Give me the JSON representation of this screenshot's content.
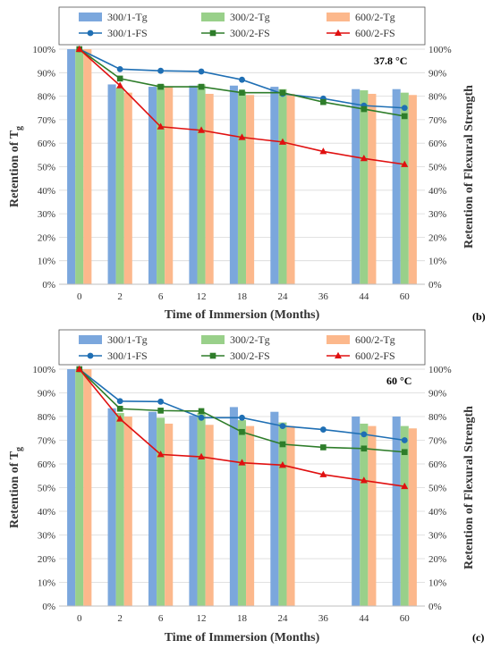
{
  "chart_data": [
    {
      "type": "bar",
      "panel_label": "(b)",
      "temperature_label": "37.8 °C",
      "categories": [
        "0",
        "2",
        "6",
        "12",
        "18",
        "24",
        "36",
        "44",
        "60"
      ],
      "xlabel": "Time of Immersion (Months)",
      "ylabel_left": "Retention of T",
      "ylabel_left_sub": "g",
      "ylabel_right": "Retention of Flexural Strength",
      "ylim": [
        0,
        100
      ],
      "yticks": [
        "0%",
        "10%",
        "20%",
        "30%",
        "40%",
        "50%",
        "60%",
        "70%",
        "80%",
        "90%",
        "100%"
      ],
      "bar_series": [
        {
          "name": "300/1-Tg",
          "color": "#7ba7dd",
          "values": [
            100,
            85,
            84,
            84.5,
            84.5,
            84,
            null,
            83,
            83
          ]
        },
        {
          "name": "300/2-Tg",
          "color": "#99d08a",
          "values": [
            100,
            83.5,
            85,
            85,
            82,
            83,
            null,
            82.5,
            81.5
          ]
        },
        {
          "name": "600/2-Tg",
          "color": "#fcb88c",
          "values": [
            100,
            81.5,
            84,
            81,
            80.5,
            81,
            null,
            81,
            80.5
          ]
        }
      ],
      "line_series": [
        {
          "name": "300/1-FS",
          "color": "#1f6fb4",
          "marker": "circle",
          "values": [
            100,
            91.5,
            90.8,
            90.5,
            87,
            81,
            79,
            76,
            75
          ]
        },
        {
          "name": "300/2-FS",
          "color": "#2e7d2a",
          "marker": "square",
          "values": [
            100,
            87.5,
            84,
            84,
            81.5,
            81.5,
            77.5,
            74.5,
            71.5
          ]
        },
        {
          "name": "600/2-FS",
          "color": "#e01010",
          "marker": "triangle",
          "values": [
            100,
            84.5,
            67,
            65.5,
            62.5,
            60.5,
            56.5,
            53.5,
            51
          ]
        }
      ]
    },
    {
      "type": "bar",
      "panel_label": "(c)",
      "temperature_label": "60 °C",
      "categories": [
        "0",
        "2",
        "6",
        "12",
        "18",
        "24",
        "36",
        "44",
        "60"
      ],
      "xlabel": "Time of Immersion (Months)",
      "ylabel_left": "Retention of T",
      "ylabel_left_sub": "g",
      "ylabel_right": "Retention of Flexural Strength",
      "ylim": [
        0,
        100
      ],
      "yticks": [
        "0%",
        "10%",
        "20%",
        "30%",
        "40%",
        "50%",
        "60%",
        "70%",
        "80%",
        "90%",
        "100%"
      ],
      "bar_series": [
        {
          "name": "300/1-Tg",
          "color": "#7ba7dd",
          "values": [
            100,
            83.5,
            82,
            80.5,
            84,
            82,
            null,
            80,
            80
          ]
        },
        {
          "name": "300/2-Tg",
          "color": "#99d08a",
          "values": [
            100,
            81.5,
            79.5,
            81.5,
            78.5,
            77.5,
            null,
            77,
            76
          ]
        },
        {
          "name": "600/2-Tg",
          "color": "#fcb88c",
          "values": [
            100,
            80,
            77,
            76.5,
            76,
            76,
            null,
            76,
            75
          ]
        }
      ],
      "line_series": [
        {
          "name": "300/1-FS",
          "color": "#1f6fb4",
          "marker": "circle",
          "values": [
            100,
            86.5,
            86.3,
            79.5,
            79.5,
            76,
            74.5,
            72.5,
            70
          ]
        },
        {
          "name": "300/2-FS",
          "color": "#2e7d2a",
          "marker": "square",
          "values": [
            100,
            83.3,
            82.5,
            82.3,
            73.5,
            68.3,
            67,
            66.5,
            65
          ]
        },
        {
          "name": "600/2-FS",
          "color": "#e01010",
          "marker": "triangle",
          "values": [
            100,
            79,
            64,
            63,
            60.5,
            59.5,
            55.5,
            53,
            50.5
          ]
        }
      ]
    }
  ]
}
